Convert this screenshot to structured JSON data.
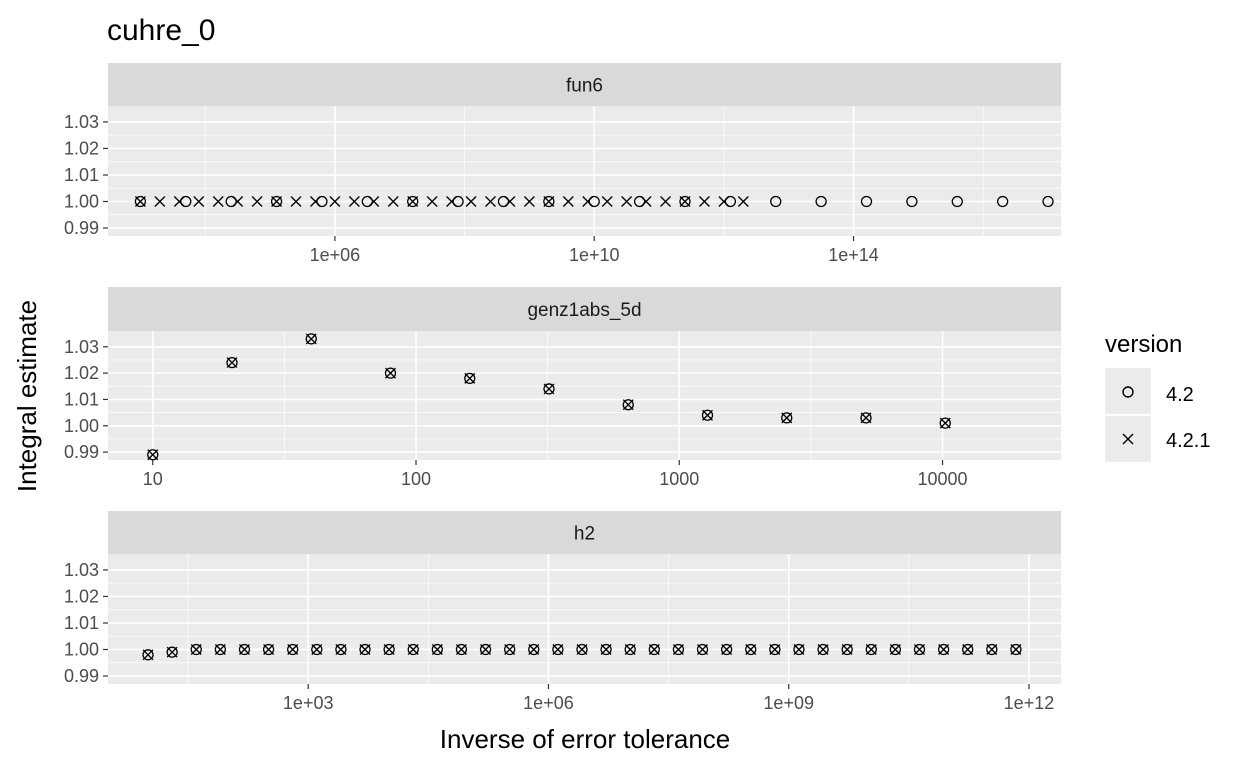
{
  "title": "cuhre_0",
  "xlabel": "Inverse of error tolerance",
  "ylabel": "Integral estimate",
  "legend": {
    "title": "version",
    "position": "right",
    "entries": [
      {
        "label": "4.2",
        "shape": "circle"
      },
      {
        "label": "4.2.1",
        "shape": "cross"
      }
    ]
  },
  "colors": {
    "panel_bg": "#ebebeb",
    "strip_bg": "#d9d9d9",
    "grid": "#ffffff",
    "points": "#000000",
    "text": "#000000",
    "axis_text": "#4d4d4d"
  },
  "chart_data": {
    "type": "scatter",
    "facet_scales": "free_x",
    "shared_y": {
      "ylim": [
        0.987,
        1.036
      ],
      "ticks": [
        0.99,
        1.0,
        1.01,
        1.02,
        1.03
      ],
      "tick_labels": [
        "0.99",
        "1.00",
        "1.01",
        "1.02",
        "1.03"
      ]
    },
    "facets": [
      {
        "name": "fun6",
        "x_scale": "log10",
        "x_exp_range": [
          2.5,
          17.2
        ],
        "x_ticks": [
          1000000.0,
          10000000000.0,
          100000000000000.0
        ],
        "x_tick_labels": [
          "1e+06",
          "1e+10",
          "1e+14"
        ],
        "series": [
          {
            "name": "4.2",
            "x_exp_start": 3,
            "x_exp_step": 0.7,
            "count": 21,
            "y": 1.0
          },
          {
            "name": "4.2.1",
            "x_exp_start": 3,
            "x_exp_step": 0.3,
            "count": 32,
            "y": 1.0
          }
        ]
      },
      {
        "name": "genz1abs_5d",
        "x_scale": "log10",
        "x_exp_range": [
          0.83,
          4.45
        ],
        "x_ticks": [
          10,
          100,
          1000,
          10000
        ],
        "x_tick_labels": [
          "10",
          "100",
          "1000",
          "10000"
        ],
        "series": [
          {
            "name": "4.2",
            "x": [
              10,
              20,
              40,
              80,
              160,
              320,
              640,
              1280,
              2560,
              5120,
              10240
            ],
            "y": [
              0.989,
              1.024,
              1.033,
              1.02,
              1.018,
              1.014,
              1.008,
              1.004,
              1.003,
              1.003,
              1.001
            ]
          },
          {
            "name": "4.2.1",
            "x": [
              10,
              20,
              40,
              80,
              160,
              320,
              640,
              1280,
              2560,
              5120,
              10240
            ],
            "y": [
              0.989,
              1.024,
              1.033,
              1.02,
              1.018,
              1.014,
              1.008,
              1.004,
              1.003,
              1.003,
              1.001
            ]
          }
        ]
      },
      {
        "name": "h2",
        "x_scale": "log10",
        "x_exp_range": [
          0.5,
          12.4
        ],
        "x_ticks": [
          1000,
          1000000,
          1000000000,
          1000000000000
        ],
        "x_tick_labels": [
          "1e+03",
          "1e+06",
          "1e+09",
          "1e+12"
        ],
        "series": [
          {
            "name": "4.2",
            "x_exp_start": 1,
            "x_exp_step": 0.30103,
            "count": 37,
            "y_first": [
              0.998,
              0.999
            ],
            "y": 1.0
          },
          {
            "name": "4.2.1",
            "x_exp_start": 1,
            "x_exp_step": 0.30103,
            "count": 37,
            "y_first": [
              0.998,
              0.999
            ],
            "y": 1.0
          }
        ]
      }
    ]
  }
}
